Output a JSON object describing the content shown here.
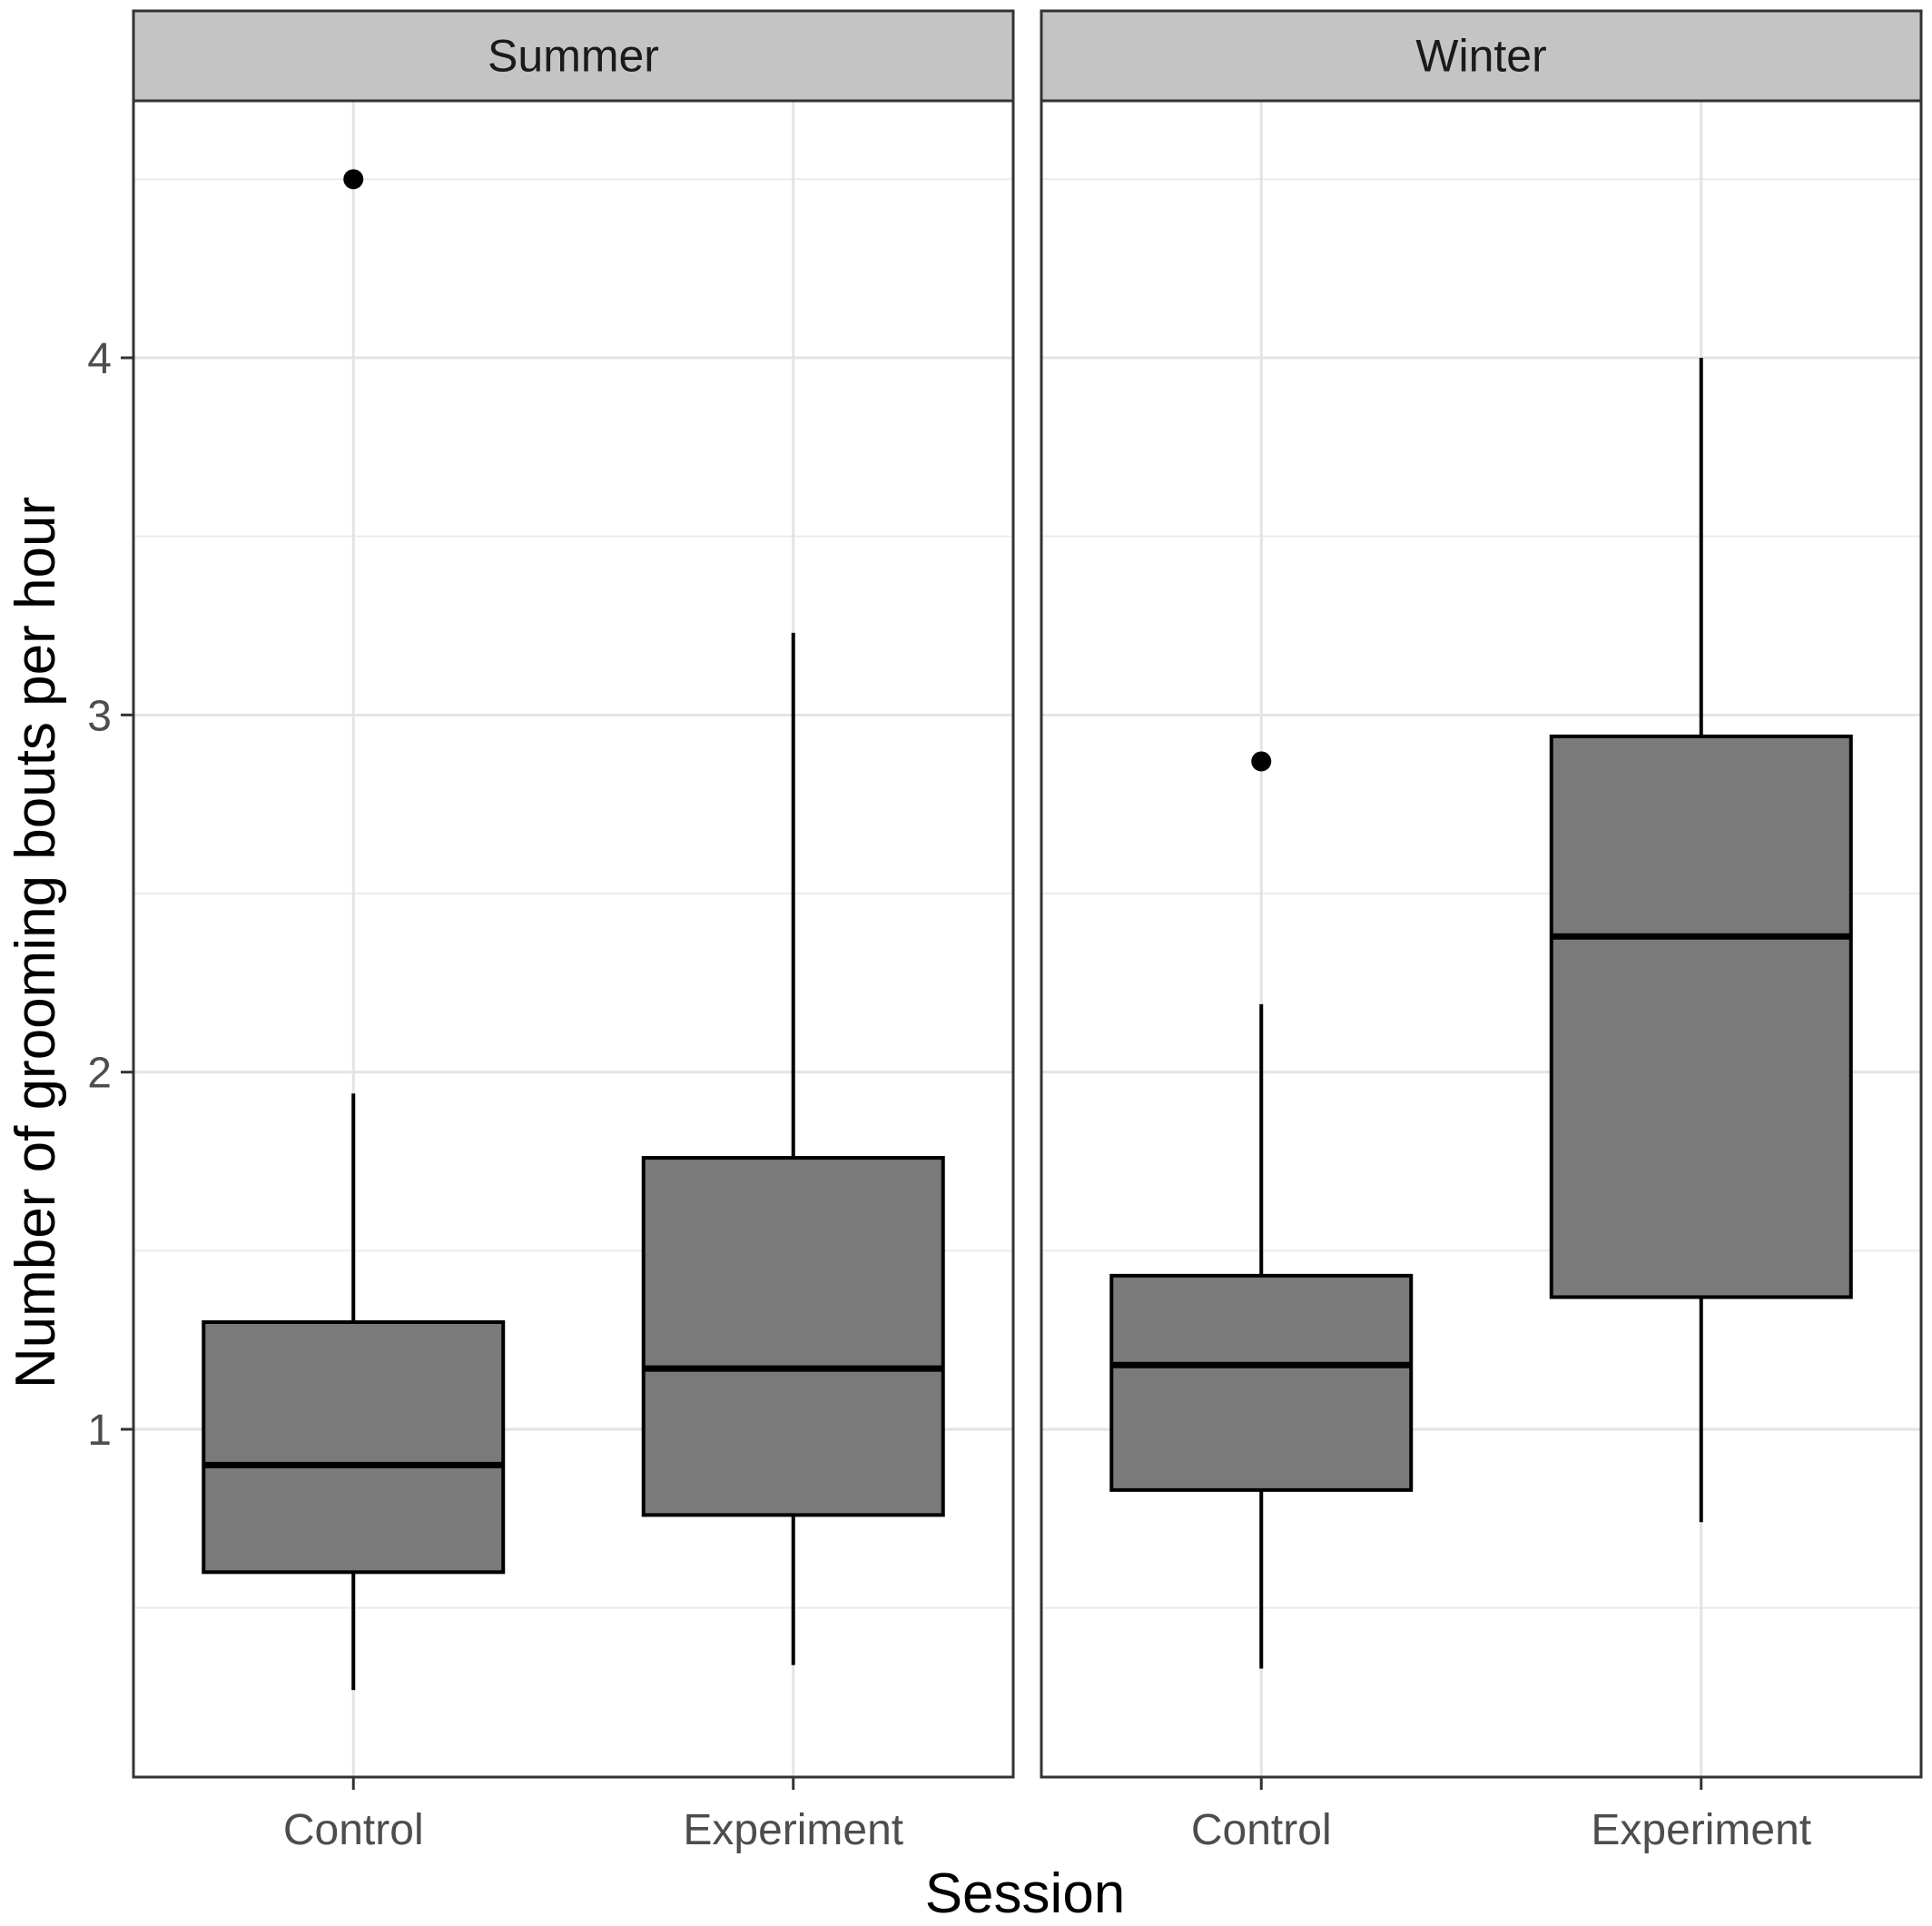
{
  "chart_data": {
    "type": "boxplot",
    "xlabel": "Session",
    "ylabel": "Number of grooming bouts per hour",
    "categories": [
      "Control",
      "Experiment"
    ],
    "y_ticks": [
      1,
      2,
      3,
      4
    ],
    "y_tick_labels": [
      "1",
      "2",
      "3",
      "4"
    ],
    "ylim": [
      0.0,
      4.7
    ],
    "grid": true,
    "box_fill": "#7a7a7a",
    "panels": [
      {
        "name": "Summer",
        "boxes": [
          {
            "category": "Control",
            "min": 0.27,
            "q1": 0.6,
            "median": 0.9,
            "q3": 1.3,
            "max": 1.94,
            "outliers": [
              4.5
            ]
          },
          {
            "category": "Experiment",
            "min": 0.34,
            "q1": 0.76,
            "median": 1.17,
            "q3": 1.76,
            "max": 3.23,
            "outliers": []
          }
        ]
      },
      {
        "name": "Winter",
        "boxes": [
          {
            "category": "Control",
            "min": 0.33,
            "q1": 0.83,
            "median": 1.18,
            "q3": 1.43,
            "max": 2.19,
            "outliers": [
              2.87
            ]
          },
          {
            "category": "Experiment",
            "min": 0.74,
            "q1": 1.37,
            "median": 2.38,
            "q3": 2.94,
            "max": 4.0,
            "outliers": []
          }
        ]
      }
    ]
  }
}
